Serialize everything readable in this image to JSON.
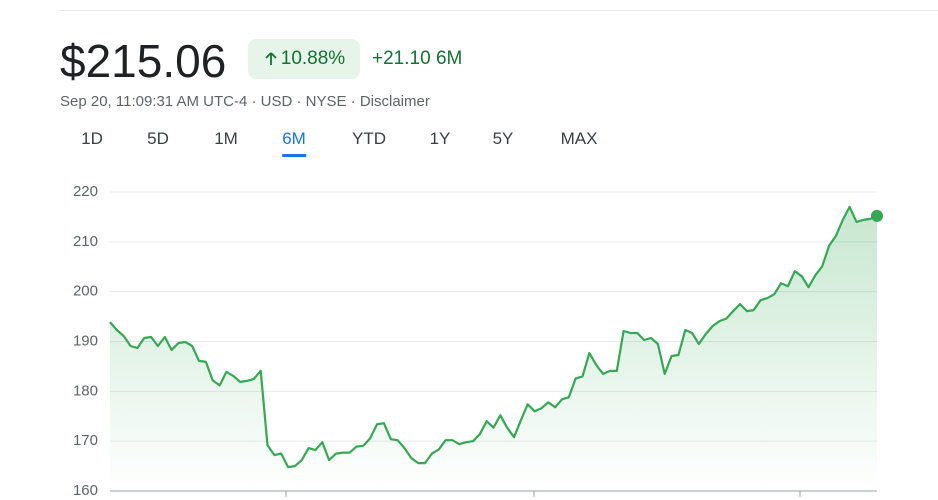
{
  "quote": {
    "price": "$215.06",
    "change_percent": "10.88%",
    "change_value": "+21.10",
    "period": "6M",
    "details": "Sep 20, 11:09:31 AM UTC-4 · USD · NYSE · Disclaimer"
  },
  "tabs": {
    "items": [
      "1D",
      "5D",
      "1M",
      "6M",
      "YTD",
      "1Y",
      "5Y",
      "MAX"
    ],
    "selected": 3
  },
  "chart_data": {
    "type": "area",
    "color": "#34a853",
    "values": [
      193.9,
      192.3,
      191.1,
      189.1,
      188.7,
      190.7,
      190.9,
      189.1,
      190.9,
      188.3,
      189.7,
      189.9,
      189.1,
      186.1,
      185.9,
      182.2,
      181.2,
      183.9,
      183.1,
      181.9,
      182.1,
      182.5,
      184.1,
      169.2,
      167.2,
      167.5,
      164.8,
      165.0,
      166.2,
      168.6,
      168.2,
      169.8,
      166.2,
      167.5,
      167.7,
      167.7,
      168.9,
      169.1,
      170.6,
      173.4,
      173.6,
      170.4,
      170.2,
      168.6,
      166.6,
      165.6,
      165.6,
      167.5,
      168.3,
      170.2,
      170.2,
      169.4,
      169.8,
      170.0,
      171.4,
      174.0,
      172.7,
      175.2,
      172.7,
      170.8,
      174.2,
      177.4,
      176.0,
      176.6,
      177.8,
      176.8,
      178.4,
      178.8,
      182.6,
      183.0,
      187.7,
      185.3,
      183.5,
      184.1,
      184.1,
      192.1,
      191.7,
      191.7,
      190.3,
      190.7,
      189.5,
      183.5,
      187.1,
      187.3,
      192.3,
      191.7,
      189.5,
      191.5,
      193.1,
      194.1,
      194.6,
      196.1,
      197.5,
      196.1,
      196.3,
      198.3,
      198.7,
      199.5,
      201.7,
      201.1,
      204.1,
      203.1,
      200.9,
      203.3,
      205.1,
      209.2,
      211.2,
      214.4,
      217.0,
      214.0,
      214.4,
      214.6,
      215.2
    ],
    "ylim": [
      160,
      220
    ],
    "yticks": [
      160,
      170,
      180,
      190,
      200,
      210,
      220
    ],
    "grid": true
  }
}
